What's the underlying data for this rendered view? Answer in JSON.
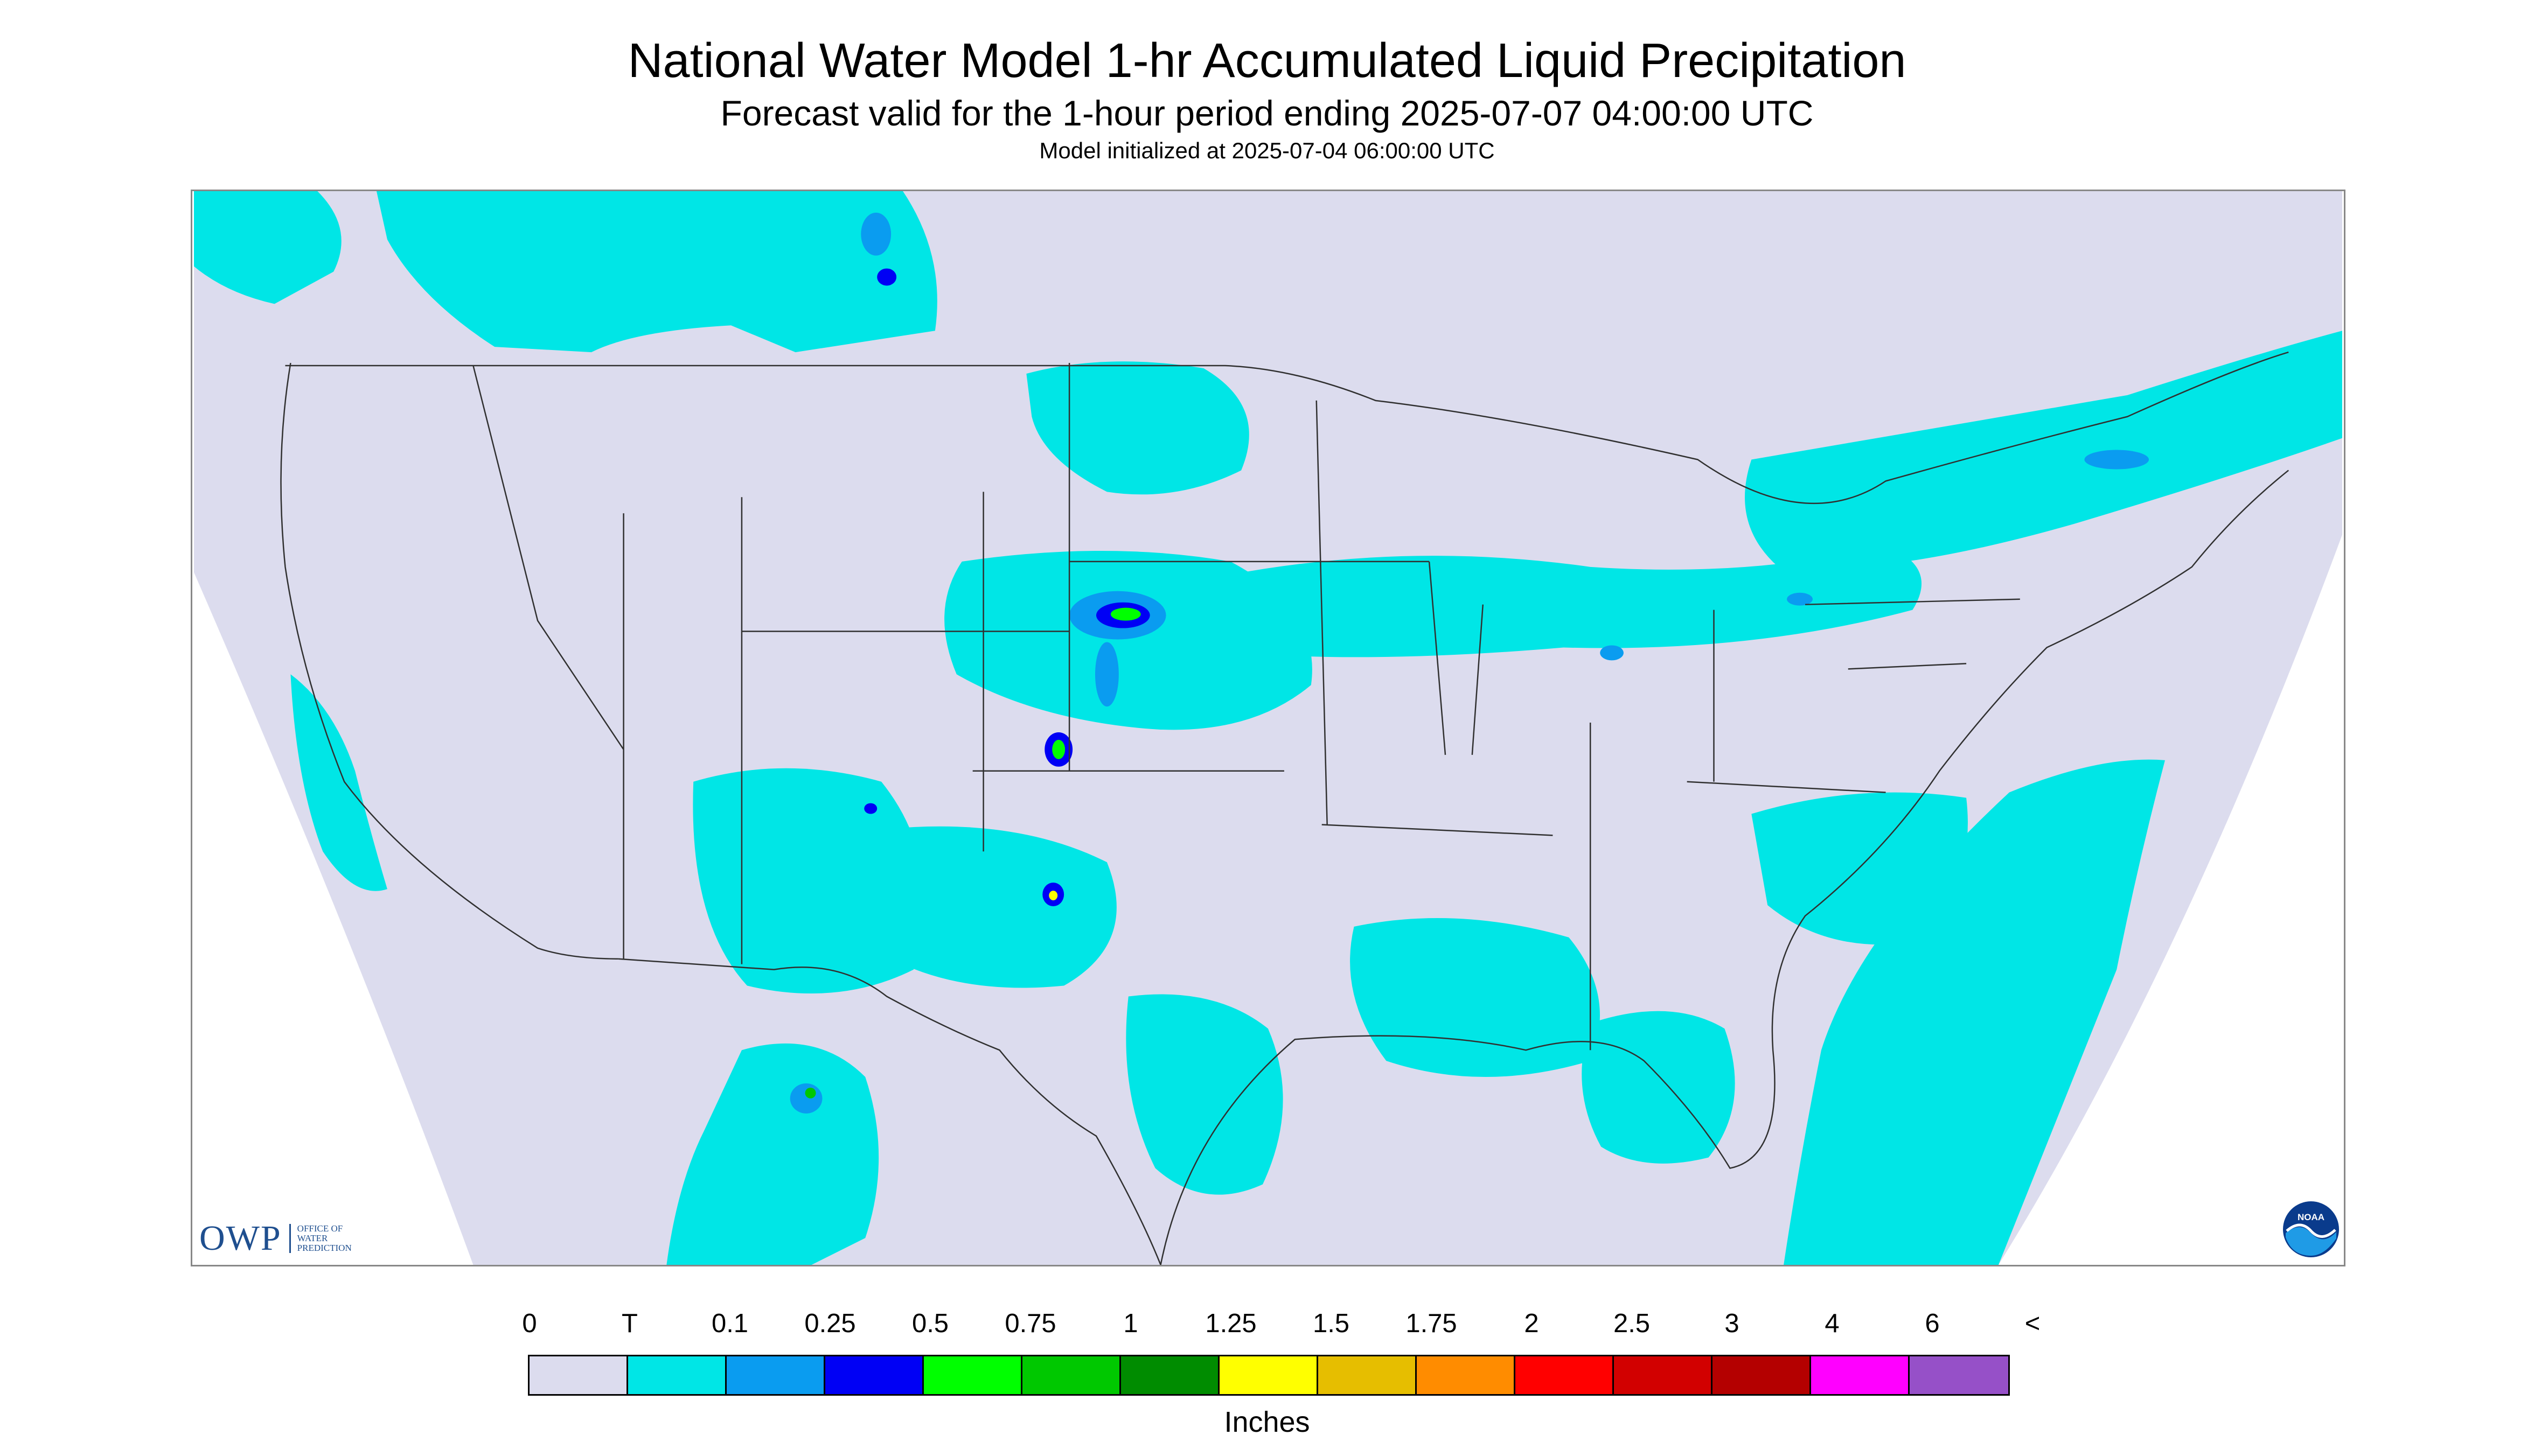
{
  "header": {
    "title": "National Water Model 1-hr Accumulated Liquid Precipitation",
    "subtitle": "Forecast valid for the 1-hour period ending 2025-07-07 04:00:00 UTC",
    "init_line": "Model initialized at 2025-07-04 06:00:00 UTC"
  },
  "logos": {
    "owp": "OWP",
    "owp_sub": [
      "OFFICE OF",
      "WATER",
      "PREDICTION"
    ],
    "noaa": "NOAA"
  },
  "legend": {
    "labels": [
      "0",
      "T",
      "0.1",
      "0.25",
      "0.5",
      "0.75",
      "1",
      "1.25",
      "1.5",
      "1.75",
      "2",
      "2.5",
      "3",
      "4",
      "6",
      "<"
    ],
    "colors": [
      "#dcdcee",
      "#00e6e6",
      "#0a9cf0",
      "#0000f5",
      "#00ff00",
      "#00c800",
      "#008c00",
      "#ffff00",
      "#e6be00",
      "#ff8c00",
      "#ff0000",
      "#d20000",
      "#b40000",
      "#ff00ff",
      "#9650c8"
    ],
    "units": "Inches"
  },
  "colors": {
    "no_precip": "#dcdcee",
    "trace": "#00e6e6",
    "outside_domain": "#ffffff",
    "borders": "#303030"
  }
}
